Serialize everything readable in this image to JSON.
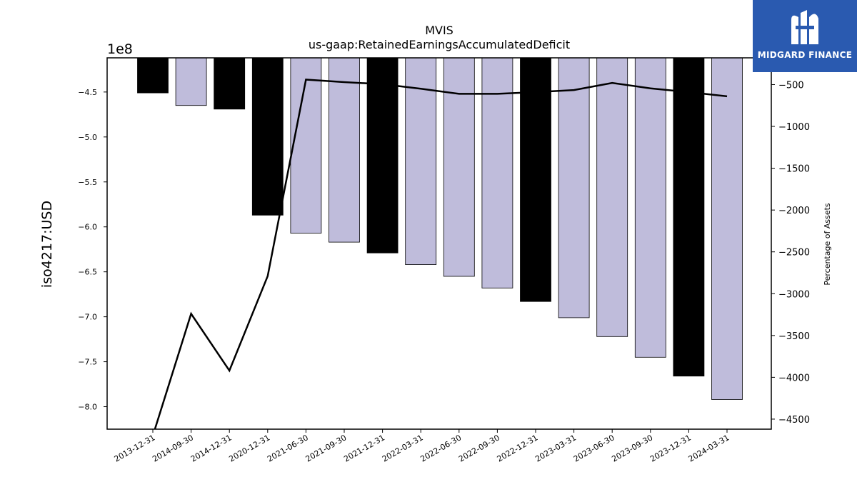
{
  "chart_data": {
    "type": "bar",
    "title": "MVIS",
    "subtitle": "us-gaap:RetainedEarningsAccumulatedDeficit",
    "ylabel": "iso4217:USD",
    "y_offset_label": "1e8",
    "y2label": "Percentage of Assets",
    "categories": [
      "2013-12-31",
      "2014-09-30",
      "2014-12-31",
      "2020-12-31",
      "2021-06-30",
      "2021-09-30",
      "2021-12-31",
      "2022-03-31",
      "2022-06-30",
      "2022-09-30",
      "2022-12-31",
      "2023-03-31",
      "2023-06-30",
      "2023-09-30",
      "2023-12-31",
      "2024-03-31"
    ],
    "series": [
      {
        "type": "bar",
        "values": [
          -451000000,
          -465000000,
          -469000000,
          -587000000,
          -607000000,
          -617000000,
          -629000000,
          -642000000,
          -655000000,
          -668000000,
          -683000000,
          -701000000,
          -722000000,
          -745000000,
          -766000000,
          -792000000
        ],
        "colors": [
          "#000000",
          "#bfbcdb",
          "#000000",
          "#000000",
          "#bfbcdb",
          "#bfbcdb",
          "#000000",
          "#bfbcdb",
          "#bfbcdb",
          "#bfbcdb",
          "#000000",
          "#bfbcdb",
          "#bfbcdb",
          "#bfbcdb",
          "#000000",
          "#bfbcdb"
        ]
      },
      {
        "type": "line",
        "axis": "right",
        "color": "#000000",
        "values": [
          -4700,
          -3240,
          -3920,
          -2790,
          -440,
          -470,
          -495,
          -550,
          -610,
          -610,
          -590,
          -565,
          -480,
          -545,
          -590,
          -640
        ]
      }
    ],
    "ylim": [
      -825000000,
      -412000000
    ],
    "yticks": [
      -450000000,
      -500000000,
      -550000000,
      -600000000,
      -650000000,
      -700000000,
      -750000000,
      -800000000
    ],
    "ytick_labels": [
      "−4.5",
      "−5.0",
      "−5.5",
      "−6.0",
      "−6.5",
      "−7.0",
      "−7.5",
      "−8.0"
    ],
    "y2lim": [
      -4620,
      -180
    ],
    "y2ticks": [
      -500,
      -1000,
      -1500,
      -2000,
      -2500,
      -3000,
      -3500,
      -4000,
      -4500
    ],
    "y2tick_labels": [
      "−500",
      "−1000",
      "−1500",
      "−2000",
      "−2500",
      "−3000",
      "−3500",
      "−4000",
      "−4500"
    ],
    "grid": false
  },
  "logo": {
    "text": "MIDGARD FINANCE",
    "color": "#2a5ab0"
  }
}
